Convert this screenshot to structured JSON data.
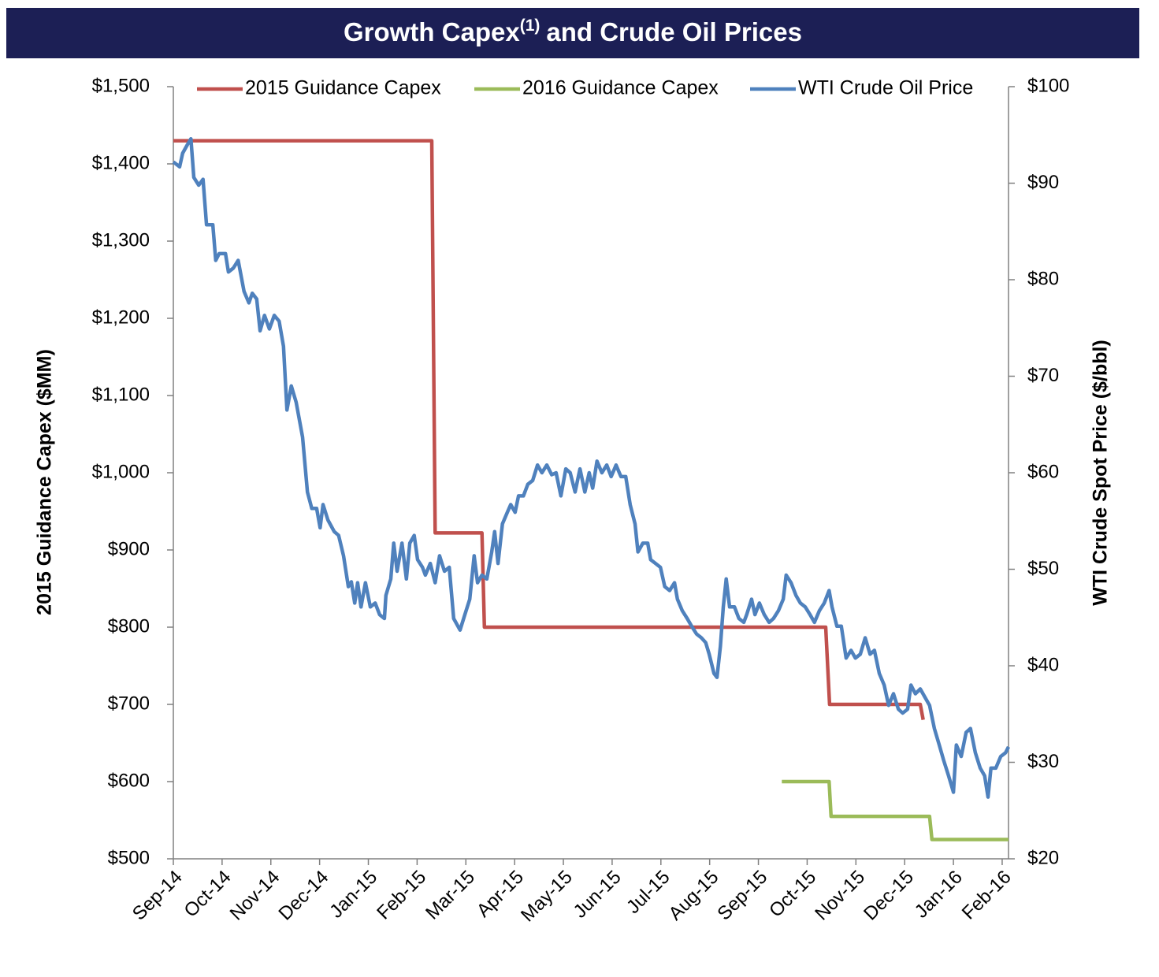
{
  "chart_data": {
    "type": "line",
    "title": {
      "text": "Growth Capex",
      "superscript": "(1)",
      "rest": "and Crude Oil Prices"
    },
    "y_label": "2015 Guidance Capex ($MM)",
    "y2_label": "WTI Crude Spot Price ($/bbl)",
    "legend_position": "top",
    "xlim": [
      0,
      17.13
    ],
    "xticks": [
      {
        "value": 0,
        "label": "Sep-14"
      },
      {
        "value": 1,
        "label": "Oct-14"
      },
      {
        "value": 2,
        "label": "Nov-14"
      },
      {
        "value": 3,
        "label": "Dec-14"
      },
      {
        "value": 4,
        "label": "Jan-15"
      },
      {
        "value": 5,
        "label": "Feb-15"
      },
      {
        "value": 6,
        "label": "Mar-15"
      },
      {
        "value": 7,
        "label": "Apr-15"
      },
      {
        "value": 8,
        "label": "May-15"
      },
      {
        "value": 9,
        "label": "Jun-15"
      },
      {
        "value": 10,
        "label": "Jul-15"
      },
      {
        "value": 11,
        "label": "Aug-15"
      },
      {
        "value": 12,
        "label": "Sep-15"
      },
      {
        "value": 13,
        "label": "Oct-15"
      },
      {
        "value": 14,
        "label": "Nov-15"
      },
      {
        "value": 15,
        "label": "Dec-15"
      },
      {
        "value": 16,
        "label": "Jan-16"
      },
      {
        "value": 17,
        "label": "Feb-16"
      }
    ],
    "ylim": [
      500,
      1500
    ],
    "yticks": [
      {
        "value": 500,
        "label": "$500"
      },
      {
        "value": 600,
        "label": "$600"
      },
      {
        "value": 700,
        "label": "$700"
      },
      {
        "value": 800,
        "label": "$800"
      },
      {
        "value": 900,
        "label": "$900"
      },
      {
        "value": 1000,
        "label": "$1,000"
      },
      {
        "value": 1100,
        "label": "$1,100"
      },
      {
        "value": 1200,
        "label": "$1,200"
      },
      {
        "value": 1300,
        "label": "$1,300"
      },
      {
        "value": 1400,
        "label": "$1,400"
      },
      {
        "value": 1500,
        "label": "$1,500"
      }
    ],
    "y2lim": [
      20,
      100
    ],
    "y2ticks": [
      {
        "value": 20,
        "label": "$20"
      },
      {
        "value": 30,
        "label": "$30"
      },
      {
        "value": 40,
        "label": "$40"
      },
      {
        "value": 50,
        "label": "$50"
      },
      {
        "value": 60,
        "label": "$60"
      },
      {
        "value": 70,
        "label": "$70"
      },
      {
        "value": 80,
        "label": "$80"
      },
      {
        "value": 90,
        "label": "$90"
      },
      {
        "value": 100,
        "label": "$100"
      }
    ],
    "series": [
      {
        "name": "2015 Guidance Capex",
        "color": "#c0504d",
        "x": [
          0,
          5.3,
          5.37,
          6.33,
          6.38,
          13.38,
          13.46,
          15.32,
          15.38
        ],
        "values": [
          1430,
          1430,
          922,
          922,
          800,
          800,
          700,
          700,
          680
        ]
      },
      {
        "name": "2016 Guidance Capex",
        "color": "#9bbb59",
        "x": [
          12.48,
          13.45,
          13.49,
          15.51,
          15.56,
          17.13
        ],
        "values": [
          600,
          600,
          555,
          555,
          525,
          525
        ]
      },
      {
        "name": "WTI Crude Oil Price",
        "color": "#4f81bd",
        "axis": "y2",
        "x": [
          0,
          0.13,
          0.19,
          0.29,
          0.36,
          0.42,
          0.52,
          0.61,
          0.68,
          0.81,
          0.87,
          0.94,
          1.07,
          1.13,
          1.23,
          1.33,
          1.45,
          1.55,
          1.62,
          1.71,
          1.78,
          1.87,
          1.97,
          2.07,
          2.17,
          2.26,
          2.33,
          2.42,
          2.52,
          2.65,
          2.75,
          2.84,
          2.94,
          3.01,
          3.07,
          3.17,
          3.3,
          3.39,
          3.49,
          3.59,
          3.65,
          3.72,
          3.78,
          3.85,
          3.94,
          4.04,
          4.14,
          4.23,
          4.33,
          4.36,
          4.46,
          4.52,
          4.59,
          4.69,
          4.78,
          4.85,
          4.94,
          5.01,
          5.11,
          5.17,
          5.27,
          5.37,
          5.46,
          5.56,
          5.66,
          5.75,
          5.88,
          5.98,
          6.08,
          6.17,
          6.24,
          6.33,
          6.43,
          6.53,
          6.59,
          6.66,
          6.75,
          6.85,
          6.92,
          7.01,
          7.08,
          7.18,
          7.27,
          7.37,
          7.47,
          7.56,
          7.66,
          7.76,
          7.85,
          7.95,
          8.05,
          8.14,
          8.24,
          8.34,
          8.44,
          8.53,
          8.6,
          8.69,
          8.79,
          8.89,
          8.98,
          9.08,
          9.18,
          9.28,
          9.37,
          9.47,
          9.53,
          9.63,
          9.73,
          9.79,
          9.89,
          9.99,
          10.08,
          10.18,
          10.28,
          10.34,
          10.44,
          10.54,
          10.63,
          10.73,
          10.83,
          10.92,
          10.99,
          11.09,
          11.15,
          11.22,
          11.28,
          11.34,
          11.41,
          11.51,
          11.6,
          11.7,
          11.76,
          11.86,
          11.93,
          12.02,
          12.12,
          12.22,
          12.31,
          12.41,
          12.51,
          12.57,
          12.67,
          12.77,
          12.86,
          12.96,
          13.06,
          13.15,
          13.25,
          13.35,
          13.45,
          13.51,
          13.61,
          13.7,
          13.8,
          13.9,
          13.99,
          14.09,
          14.19,
          14.29,
          14.38,
          14.48,
          14.58,
          14.67,
          14.77,
          14.87,
          14.96,
          15.06,
          15.13,
          15.22,
          15.32,
          15.42,
          15.51,
          15.61,
          15.71,
          15.8,
          15.9,
          16.0,
          16.06,
          16.16,
          16.26,
          16.35,
          16.45,
          16.55,
          16.64,
          16.71,
          16.77,
          16.87,
          16.97,
          17.07,
          17.13
        ],
        "values": [
          92.2,
          91.7,
          93.1,
          94.0,
          94.6,
          90.6,
          89.8,
          90.4,
          85.7,
          85.7,
          82.0,
          82.7,
          82.7,
          80.8,
          81.2,
          82.0,
          78.8,
          77.6,
          78.6,
          78.0,
          74.7,
          76.3,
          74.9,
          76.3,
          75.7,
          73.1,
          66.5,
          69.0,
          67.3,
          63.7,
          58.0,
          56.3,
          56.3,
          54.3,
          56.7,
          55.1,
          53.9,
          53.5,
          51.4,
          48.2,
          48.7,
          46.5,
          48.6,
          46.1,
          48.6,
          46.1,
          46.5,
          45.3,
          44.9,
          47.3,
          49.0,
          52.7,
          49.8,
          52.7,
          49.0,
          52.7,
          53.5,
          51.0,
          50.2,
          49.4,
          50.6,
          48.6,
          51.4,
          49.8,
          50.2,
          44.9,
          43.7,
          45.3,
          46.9,
          51.4,
          48.6,
          49.4,
          49.0,
          51.8,
          53.9,
          50.6,
          54.7,
          55.9,
          56.7,
          55.9,
          57.6,
          57.6,
          58.8,
          59.2,
          60.8,
          60.0,
          60.8,
          59.8,
          60.0,
          57.6,
          60.4,
          60.0,
          58.0,
          60.4,
          58.0,
          60.0,
          58.4,
          61.2,
          60.0,
          60.8,
          59.6,
          60.8,
          59.6,
          59.6,
          56.7,
          54.7,
          51.8,
          52.7,
          52.7,
          51.0,
          50.6,
          50.2,
          48.2,
          47.8,
          48.6,
          46.9,
          45.7,
          44.9,
          44.1,
          43.3,
          42.9,
          42.4,
          41.2,
          39.2,
          38.8,
          42.0,
          46.1,
          49.0,
          46.1,
          46.1,
          44.9,
          44.5,
          45.3,
          46.9,
          45.3,
          46.5,
          45.3,
          44.5,
          44.9,
          45.7,
          46.9,
          49.4,
          48.6,
          47.3,
          46.5,
          46.1,
          45.3,
          44.5,
          45.7,
          46.5,
          47.8,
          46.1,
          44.1,
          44.1,
          40.8,
          41.6,
          40.8,
          41.2,
          42.9,
          41.2,
          41.6,
          39.2,
          38.0,
          35.9,
          37.1,
          35.5,
          35.1,
          35.5,
          38.0,
          37.1,
          37.6,
          36.7,
          35.9,
          33.5,
          31.8,
          30.2,
          28.6,
          26.9,
          31.8,
          30.6,
          33.1,
          33.5,
          31.0,
          29.4,
          28.6,
          26.4,
          29.4,
          29.4,
          30.6,
          31.0,
          31.6
        ]
      }
    ]
  }
}
